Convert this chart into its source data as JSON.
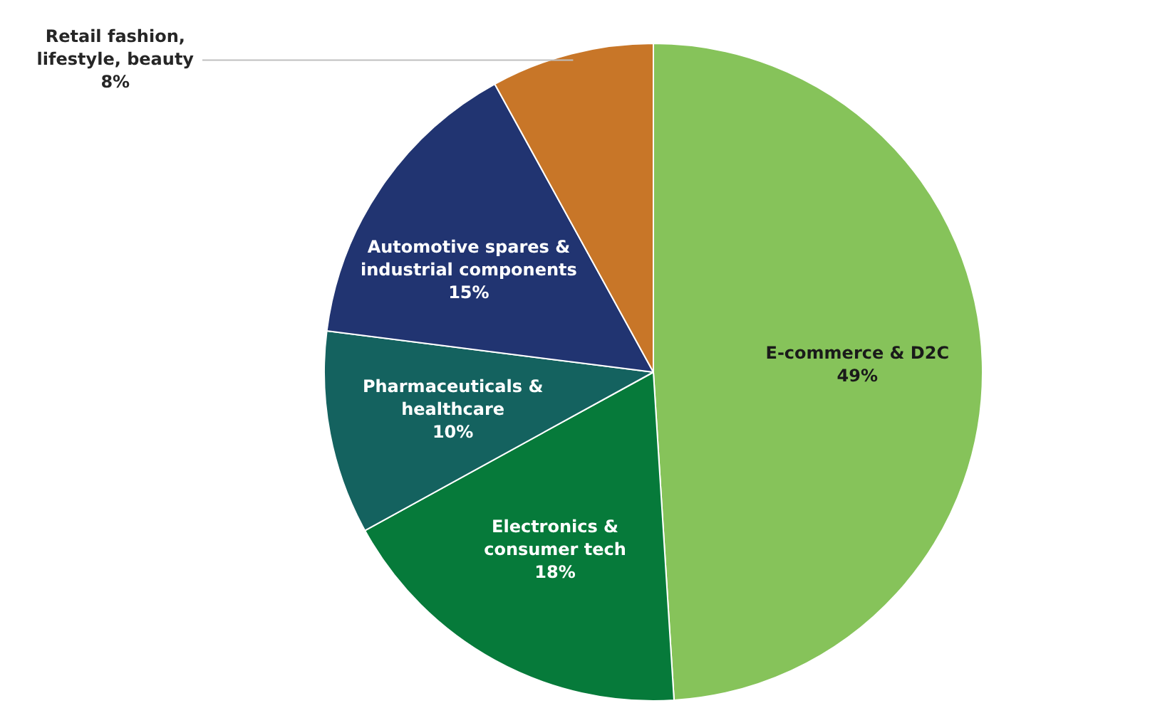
{
  "chart_data": {
    "type": "pie",
    "categories": [
      "E-commerce & D2C",
      "Electronics & consumer tech",
      "Pharmaceuticals & healthcare",
      "Automotive spares & industrial components",
      "Retail fashion, lifestyle, beauty"
    ],
    "values": [
      49,
      18,
      10,
      15,
      8
    ],
    "value_labels": [
      "49%",
      "18%",
      "10%",
      "15%",
      "8%"
    ],
    "colors": [
      "#86c35a",
      "#067a3a",
      "#14625f",
      "#213471",
      "#c87628"
    ]
  }
}
